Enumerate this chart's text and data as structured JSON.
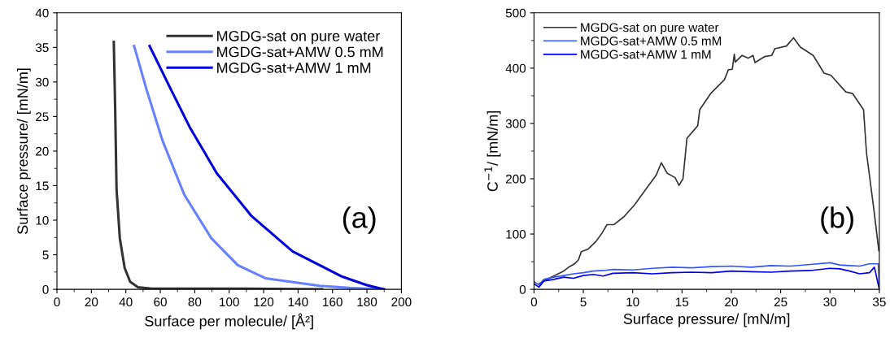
{
  "chart_data": [
    {
      "type": "line",
      "xlabel": "Surface per molecule/ [Å²]",
      "ylabel": "Surface pressure/ [mN/m]",
      "xlim": [
        0,
        200
      ],
      "ylim": [
        0,
        40
      ],
      "xticks": [
        0,
        20,
        40,
        60,
        80,
        100,
        120,
        140,
        160,
        180,
        200
      ],
      "yticks": [
        0,
        5,
        10,
        15,
        20,
        25,
        30,
        35,
        40
      ],
      "grid": false,
      "legend": "top right",
      "annotations": [
        "(a)"
      ],
      "series": [
        {
          "name": "MGDG-sat on pure water",
          "color": "#333333",
          "x": [
            33,
            33.8,
            34.6,
            36.5,
            39.3,
            42.5,
            47,
            55,
            80,
            110,
            154
          ],
          "values": [
            35.8,
            26.2,
            14.5,
            7.4,
            3.1,
            1.1,
            0.3,
            0.1,
            0.1,
            0.1,
            0
          ]
        },
        {
          "name": "MGDG-sat+AMW 0.5 mM",
          "color": "#6680ff",
          "x": [
            44.8,
            51.9,
            61.3,
            73.9,
            89.6,
            105,
            121,
            152.5,
            170,
            190
          ],
          "values": [
            35.2,
            29,
            21.5,
            13.7,
            7.4,
            3.5,
            1.6,
            0.5,
            0.2,
            0
          ]
        },
        {
          "name": "MGDG-sat+AMW 1 mM",
          "color": "#0000dd",
          "x": [
            53.8,
            66,
            77,
            92.8,
            113,
            136.8,
            165,
            180,
            190
          ],
          "values": [
            35.2,
            29,
            23.5,
            16.8,
            10.6,
            5.5,
            1.9,
            0.6,
            0
          ]
        }
      ]
    },
    {
      "type": "line",
      "xlabel": "Surface pressure/ [mN/m]",
      "ylabel": "C$^{−1}$/ [mN/m]",
      "xlim": [
        0,
        35
      ],
      "ylim": [
        0,
        500
      ],
      "xticks": [
        0,
        5,
        10,
        15,
        20,
        25,
        30,
        35
      ],
      "yticks": [
        0,
        100,
        200,
        300,
        400,
        500
      ],
      "grid": false,
      "legend": "top left",
      "annotations": [
        "(b)"
      ],
      "series": [
        {
          "name": "MGDG-sat on pure water",
          "color": "#333333",
          "x": [
            0.5,
            1.4,
            2.2,
            3,
            3.6,
            4.1,
            4.5,
            4.8,
            5.5,
            6.3,
            6.9,
            7.4,
            8.1,
            9.1,
            10.2,
            11.3,
            12.4,
            12.9,
            13.5,
            14.3,
            14.7,
            15.1,
            15.5,
            16.6,
            16.8,
            17.9,
            19.3,
            19.7,
            20.1,
            20.3,
            20.4,
            21.1,
            21.7,
            22.2,
            22.4,
            23.4,
            24.1,
            24.4,
            25.6,
            26.3,
            27,
            28.3,
            29.4,
            30.1,
            31.6,
            32.3,
            33.4,
            33.7,
            34.4,
            34.95
          ],
          "values": [
            10,
            19,
            26,
            33,
            41,
            46,
            53,
            68,
            73,
            87,
            102,
            117,
            117,
            131,
            153,
            180,
            207,
            229,
            210,
            202,
            188,
            200,
            273,
            296,
            325,
            354,
            379,
            397,
            398,
            425,
            411,
            423,
            418,
            423,
            410,
            421,
            423,
            435,
            440,
            455,
            438,
            423,
            391,
            387,
            357,
            354,
            325,
            247,
            151,
            70
          ]
        },
        {
          "name": "MGDG-sat+AMW 0.5 mM",
          "color": "#3355ff",
          "x": [
            0,
            0.5,
            1,
            2,
            3,
            4,
            5,
            6,
            7,
            8,
            10,
            12,
            14,
            16,
            18,
            20,
            22,
            24,
            26,
            28,
            30,
            31,
            32,
            33,
            34,
            34.9,
            35
          ],
          "values": [
            14,
            8,
            18,
            22,
            25,
            28,
            30,
            33,
            34,
            36,
            35,
            38,
            40,
            39,
            41,
            42,
            40,
            43,
            42,
            45,
            48,
            44,
            43,
            42,
            46,
            46,
            0
          ]
        },
        {
          "name": "MGDG-sat+AMW 1 mM",
          "color": "#0000ee",
          "x": [
            0,
            0.5,
            1,
            2,
            3,
            4,
            5,
            6,
            7,
            8,
            10,
            12,
            14,
            16,
            18,
            20,
            22,
            24,
            26,
            28,
            30,
            31,
            32,
            33,
            34,
            34.5,
            35
          ],
          "values": [
            10,
            4,
            15,
            18,
            22,
            20,
            25,
            27,
            24,
            29,
            30,
            28,
            30,
            31,
            30,
            33,
            32,
            31,
            33,
            34,
            38,
            37,
            33,
            28,
            30,
            40,
            0
          ]
        }
      ]
    }
  ]
}
